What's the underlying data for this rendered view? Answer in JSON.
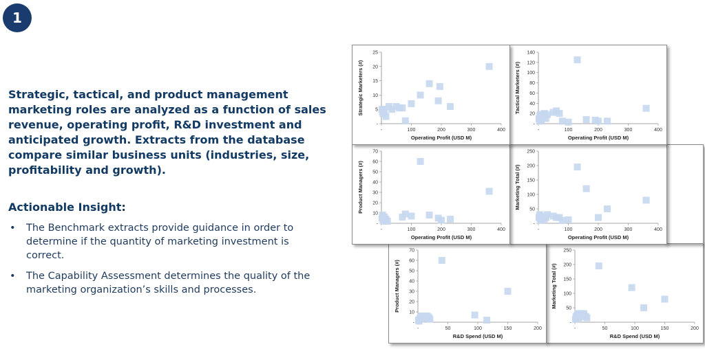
{
  "badge": "1",
  "intro": "Strategic, tactical, and product management marketing roles are analyzed as a function of sales revenue, operating profit, R&D investment and anticipated growth. Extracts from the database compare similar business units (industries, size, profitability and growth).",
  "insight": {
    "title": "Actionable Insight:",
    "bullets": [
      "The Benchmark extracts provide guidance in order to determine if the quantity of marketing investment is correct.",
      "The Capability Assessment determines the quality of the marketing organization’s skills and processes."
    ]
  },
  "colors": {
    "marker": "#c5d7ee",
    "text_dark": "#123a63"
  },
  "chart_data": [
    {
      "type": "scatter",
      "id": "strategic-vs-op",
      "xlabel": "Operating Profit (USD M)",
      "ylabel": "Strategic Marketers (#)",
      "xticks": [
        "-",
        "100",
        "200",
        "300",
        "400"
      ],
      "xlim": [
        0,
        400
      ],
      "yticks": [
        "-",
        "5",
        "10",
        "15",
        "20",
        "25"
      ],
      "ylim": [
        0,
        25
      ],
      "points": [
        [
          2,
          5
        ],
        [
          4,
          4
        ],
        [
          6,
          3.5
        ],
        [
          8,
          5
        ],
        [
          10,
          4
        ],
        [
          15,
          2.5
        ],
        [
          25,
          6
        ],
        [
          35,
          5
        ],
        [
          50,
          6
        ],
        [
          60,
          5.5
        ],
        [
          70,
          5.5
        ],
        [
          80,
          1
        ],
        [
          100,
          7
        ],
        [
          130,
          10
        ],
        [
          160,
          14
        ],
        [
          195,
          13
        ],
        [
          190,
          8
        ],
        [
          230,
          6
        ],
        [
          360,
          20
        ]
      ]
    },
    {
      "type": "scatter",
      "id": "tactical-vs-op",
      "xlabel": "Operating Profit (USD M)",
      "ylabel": "Tactical Marketers (#)",
      "xticks": [
        "-",
        "100",
        "200",
        "300",
        "400"
      ],
      "xlim": [
        0,
        400
      ],
      "yticks": [
        "-",
        "20",
        "40",
        "60",
        "80",
        "100",
        "120",
        "140"
      ],
      "ylim": [
        0,
        140
      ],
      "points": [
        [
          2,
          10
        ],
        [
          4,
          5
        ],
        [
          6,
          18
        ],
        [
          8,
          12
        ],
        [
          10,
          8
        ],
        [
          15,
          15
        ],
        [
          20,
          20
        ],
        [
          25,
          10
        ],
        [
          30,
          18
        ],
        [
          50,
          22
        ],
        [
          60,
          25
        ],
        [
          70,
          20
        ],
        [
          80,
          5
        ],
        [
          100,
          3
        ],
        [
          130,
          125
        ],
        [
          160,
          8
        ],
        [
          190,
          7
        ],
        [
          200,
          5
        ],
        [
          230,
          5
        ],
        [
          360,
          30
        ]
      ]
    },
    {
      "type": "scatter",
      "id": "product-vs-op",
      "xlabel": "Operating Profit (USD M)",
      "ylabel": "Product Managers (#)",
      "xticks": [
        "-",
        "100",
        "200",
        "300",
        "400"
      ],
      "xlim": [
        0,
        400
      ],
      "yticks": [
        "-",
        "10",
        "20",
        "30",
        "40",
        "50",
        "60",
        "70"
      ],
      "ylim": [
        0,
        70
      ],
      "points": [
        [
          2,
          5
        ],
        [
          4,
          8
        ],
        [
          6,
          3
        ],
        [
          8,
          2
        ],
        [
          10,
          6
        ],
        [
          15,
          4
        ],
        [
          20,
          2
        ],
        [
          70,
          6
        ],
        [
          80,
          9
        ],
        [
          100,
          7
        ],
        [
          130,
          60
        ],
        [
          160,
          8
        ],
        [
          190,
          5
        ],
        [
          200,
          3
        ],
        [
          230,
          4
        ],
        [
          360,
          31
        ]
      ]
    },
    {
      "type": "scatter",
      "id": "marketing-total-vs-op",
      "xlabel": "Operating Profit (USD M)",
      "ylabel": "Marketing Total (#)",
      "xticks": [
        "-",
        "100",
        "200",
        "300",
        "400"
      ],
      "xlim": [
        0,
        400
      ],
      "yticks": [
        "-",
        "50",
        "100",
        "150",
        "200",
        "250"
      ],
      "ylim": [
        0,
        250
      ],
      "points": [
        [
          2,
          20
        ],
        [
          4,
          30
        ],
        [
          6,
          15
        ],
        [
          8,
          25
        ],
        [
          10,
          10
        ],
        [
          15,
          20
        ],
        [
          20,
          15
        ],
        [
          25,
          20
        ],
        [
          30,
          30
        ],
        [
          50,
          25
        ],
        [
          60,
          20
        ],
        [
          70,
          20
        ],
        [
          80,
          10
        ],
        [
          100,
          12
        ],
        [
          130,
          195
        ],
        [
          160,
          120
        ],
        [
          200,
          20
        ],
        [
          230,
          50
        ],
        [
          360,
          80
        ]
      ]
    },
    {
      "type": "scatter",
      "id": "product-vs-rd",
      "xlabel": "R&D Spend (USD M)",
      "ylabel": "Product Managers (#)",
      "xticks": [
        "-",
        "50",
        "100",
        "150",
        "200"
      ],
      "xlim": [
        0,
        200
      ],
      "yticks": [
        "-",
        "10",
        "20",
        "30",
        "40",
        "50",
        "60",
        "70"
      ],
      "ylim": [
        0,
        70
      ],
      "points": [
        [
          1,
          2
        ],
        [
          2,
          1
        ],
        [
          3,
          3
        ],
        [
          4,
          4
        ],
        [
          5,
          5
        ],
        [
          6,
          3
        ],
        [
          7,
          6
        ],
        [
          8,
          4
        ],
        [
          9,
          5
        ],
        [
          10,
          6
        ],
        [
          12,
          5
        ],
        [
          14,
          4
        ],
        [
          15,
          6
        ],
        [
          18,
          5
        ],
        [
          20,
          3
        ],
        [
          40,
          60
        ],
        [
          95,
          7
        ],
        [
          115,
          2
        ],
        [
          150,
          30
        ]
      ]
    },
    {
      "type": "scatter",
      "id": "marketing-total-vs-rd",
      "xlabel": "R&D Spend (USD M)",
      "ylabel": "Marketing Total (#)",
      "xticks": [
        "-",
        "50",
        "100",
        "150",
        "200"
      ],
      "xlim": [
        0,
        200
      ],
      "yticks": [
        "-",
        "50",
        "100",
        "150",
        "200",
        "250"
      ],
      "ylim": [
        0,
        250
      ],
      "points": [
        [
          1,
          10
        ],
        [
          2,
          20
        ],
        [
          3,
          15
        ],
        [
          4,
          25
        ],
        [
          5,
          30
        ],
        [
          6,
          20
        ],
        [
          7,
          15
        ],
        [
          8,
          25
        ],
        [
          9,
          20
        ],
        [
          10,
          30
        ],
        [
          12,
          20
        ],
        [
          14,
          25
        ],
        [
          15,
          30
        ],
        [
          18,
          20
        ],
        [
          20,
          15
        ],
        [
          40,
          195
        ],
        [
          95,
          120
        ],
        [
          115,
          50
        ],
        [
          150,
          80
        ]
      ]
    }
  ]
}
